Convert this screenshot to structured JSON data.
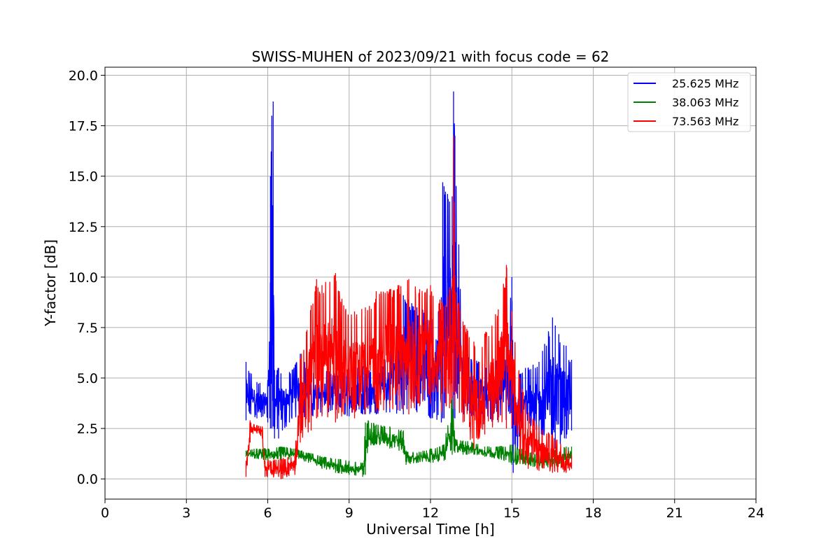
{
  "chart_data": {
    "type": "line",
    "title": "SWISS-MUHEN of 2023/09/21 with focus code = 62",
    "xlabel": "Universal Time [h]",
    "ylabel": "Y-factor [dB]",
    "xlim": [
      0,
      24
    ],
    "ylim": [
      -1.0,
      20.4
    ],
    "x_ticks": [
      0,
      3,
      6,
      9,
      12,
      15,
      18,
      21,
      24
    ],
    "y_ticks": [
      0.0,
      2.5,
      5.0,
      7.5,
      10.0,
      12.5,
      15.0,
      17.5,
      20.0
    ],
    "x_tick_labels": [
      "0",
      "3",
      "6",
      "9",
      "12",
      "15",
      "18",
      "21",
      "24"
    ],
    "y_tick_labels": [
      "0.0",
      "2.5",
      "5.0",
      "7.5",
      "10.0",
      "12.5",
      "15.0",
      "17.5",
      "20.0"
    ],
    "grid": true,
    "legend_position": "top-right",
    "series": [
      {
        "name": "25.625 MHz",
        "color": "#0000ff",
        "envelope": {
          "x": [
            5.2,
            5.6,
            6.0,
            6.1,
            6.15,
            6.2,
            6.25,
            6.4,
            6.8,
            7.2,
            7.6,
            8.0,
            8.5,
            9.0,
            9.5,
            10.0,
            10.5,
            11.0,
            11.5,
            12.0,
            12.4,
            12.45,
            12.5,
            12.8,
            12.85,
            12.9,
            13.2,
            13.6,
            14.0,
            14.5,
            15.0,
            15.05,
            15.5,
            16.0,
            16.5,
            16.6,
            17.0,
            17.2
          ],
          "low": [
            2.9,
            3.0,
            2.8,
            2.5,
            2.5,
            2.6,
            2.0,
            2.0,
            2.8,
            3.0,
            3.1,
            3.2,
            3.2,
            3.1,
            3.2,
            3.2,
            3.3,
            3.2,
            3.3,
            3.0,
            2.8,
            3.0,
            3.0,
            3.1,
            3.0,
            3.0,
            3.2,
            3.1,
            2.9,
            2.8,
            2.5,
            0.3,
            2.6,
            2.2,
            1.6,
            1.5,
            2.0,
            2.4
          ],
          "high": [
            5.8,
            4.8,
            4.9,
            15.0,
            18.0,
            18.7,
            5.4,
            5.5,
            5.3,
            6.2,
            5.2,
            5.6,
            5.2,
            5.4,
            5.6,
            5.2,
            6.3,
            9.1,
            8.5,
            8.2,
            9.0,
            14.7,
            14.5,
            14.0,
            19.2,
            17.0,
            6.3,
            5.9,
            5.7,
            5.9,
            10.0,
            5.5,
            5.5,
            5.8,
            8.0,
            7.6,
            6.6,
            5.9
          ]
        }
      },
      {
        "name": "38.063 MHz",
        "color": "#008000",
        "envelope": {
          "x": [
            5.2,
            5.6,
            6.0,
            6.5,
            7.0,
            7.5,
            8.0,
            8.5,
            9.0,
            9.5,
            9.6,
            9.7,
            10.0,
            10.5,
            11.0,
            11.1,
            11.5,
            12.0,
            12.5,
            12.8,
            12.9,
            13.2,
            13.6,
            14.0,
            14.5,
            15.0,
            15.5,
            16.0,
            16.5,
            17.0,
            17.2
          ],
          "low": [
            1.1,
            1.0,
            0.9,
            0.9,
            1.0,
            0.8,
            0.5,
            0.3,
            0.2,
            0.1,
            0.2,
            1.6,
            1.7,
            1.5,
            1.3,
            0.7,
            0.8,
            0.8,
            0.9,
            1.2,
            1.3,
            1.2,
            1.2,
            1.1,
            1.0,
            0.7,
            0.7,
            0.5,
            0.6,
            0.6,
            1.0
          ],
          "high": [
            1.4,
            1.5,
            1.5,
            1.6,
            1.5,
            1.3,
            1.1,
            1.0,
            0.9,
            0.8,
            2.8,
            2.9,
            2.7,
            2.6,
            2.4,
            1.4,
            1.3,
            1.5,
            1.7,
            4.1,
            2.0,
            1.9,
            1.8,
            1.6,
            1.6,
            1.7,
            1.4,
            1.2,
            1.4,
            1.6,
            1.6
          ]
        }
      },
      {
        "name": "73.563 MHz",
        "color": "#ff0000",
        "envelope": {
          "x": [
            5.2,
            5.35,
            5.5,
            5.8,
            5.9,
            6.5,
            7.0,
            7.2,
            7.6,
            7.8,
            8.0,
            8.5,
            8.8,
            9.2,
            9.6,
            10.0,
            10.5,
            10.8,
            11.2,
            11.6,
            12.0,
            12.4,
            12.7,
            12.8,
            12.85,
            12.9,
            13.2,
            13.6,
            13.8,
            14.0,
            14.5,
            14.8,
            15.0,
            15.3,
            15.6,
            16.0,
            16.5,
            17.0,
            17.2
          ],
          "low": [
            0.1,
            1.8,
            2.4,
            2.0,
            0.1,
            0.0,
            0.2,
            1.8,
            2.4,
            3.0,
            3.1,
            2.8,
            3.2,
            3.0,
            3.2,
            3.3,
            3.5,
            3.4,
            3.2,
            3.6,
            3.7,
            3.3,
            3.5,
            4.0,
            4.3,
            3.5,
            2.8,
            1.5,
            2.0,
            2.2,
            2.8,
            2.5,
            2.6,
            0.8,
            0.5,
            0.4,
            0.3,
            0.3,
            0.5
          ],
          "high": [
            0.9,
            2.9,
            2.7,
            2.6,
            0.9,
            1.0,
            1.2,
            6.0,
            8.6,
            9.9,
            9.6,
            10.2,
            8.6,
            8.3,
            8.5,
            9.3,
            9.4,
            9.6,
            9.9,
            9.4,
            9.6,
            8.8,
            9.5,
            9.8,
            17.0,
            10.1,
            7.8,
            6.8,
            5.8,
            7.2,
            8.4,
            10.6,
            8.3,
            5.0,
            3.3,
            2.6,
            2.2,
            1.5,
            1.2
          ]
        }
      }
    ]
  }
}
